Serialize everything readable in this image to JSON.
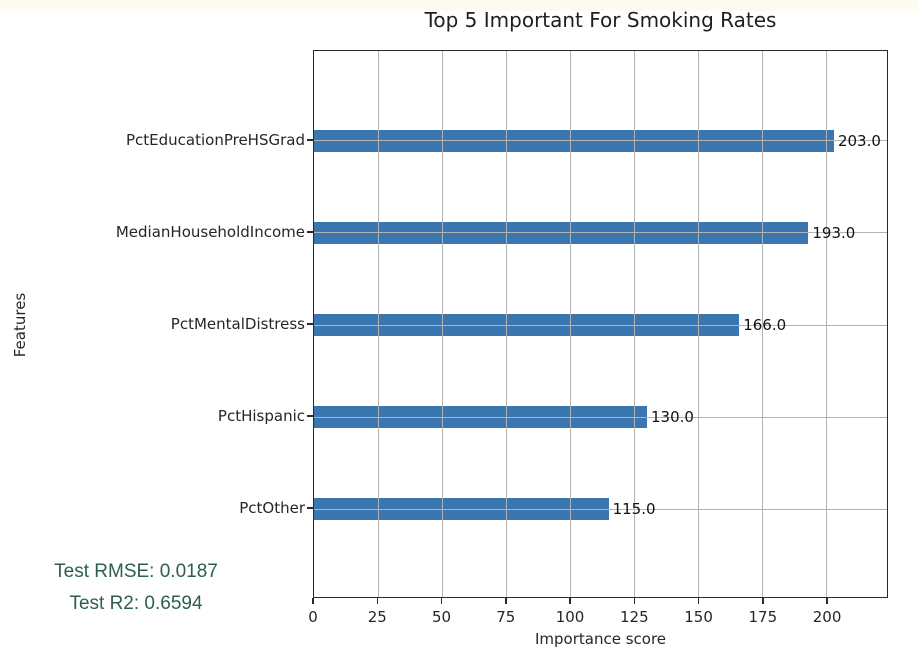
{
  "page": {
    "background_color": "#ffffff",
    "top_strip_color": "#fffaf0"
  },
  "chart_data": {
    "type": "bar",
    "orientation": "horizontal",
    "title": "Top 5 Important For Smoking Rates",
    "xlabel": "Importance score",
    "ylabel": "Features",
    "categories": [
      "PctEducationPreHSGrad",
      "MedianHouseholdIncome",
      "PctMentalDistress",
      "PctHispanic",
      "PctOther"
    ],
    "values": [
      203.0,
      193.0,
      166.0,
      130.0,
      115.0
    ],
    "bar_value_labels": [
      "203.0",
      "193.0",
      "166.0",
      "130.0",
      "115.0"
    ],
    "x_ticks": [
      0,
      25,
      50,
      75,
      100,
      125,
      150,
      175,
      200
    ],
    "xlim": [
      0,
      223.7
    ],
    "grid": true,
    "grid_on_top": true,
    "legend": "none",
    "bar_color": "#3a76af",
    "grid_color": "#b3b3b3",
    "spine_color": "#2a2a2a"
  },
  "annotations": {
    "rmse_text": "Test RMSE: 0.0187",
    "r2_text": "Test R2: 0.6594",
    "text_color": "#2d5f4d"
  }
}
